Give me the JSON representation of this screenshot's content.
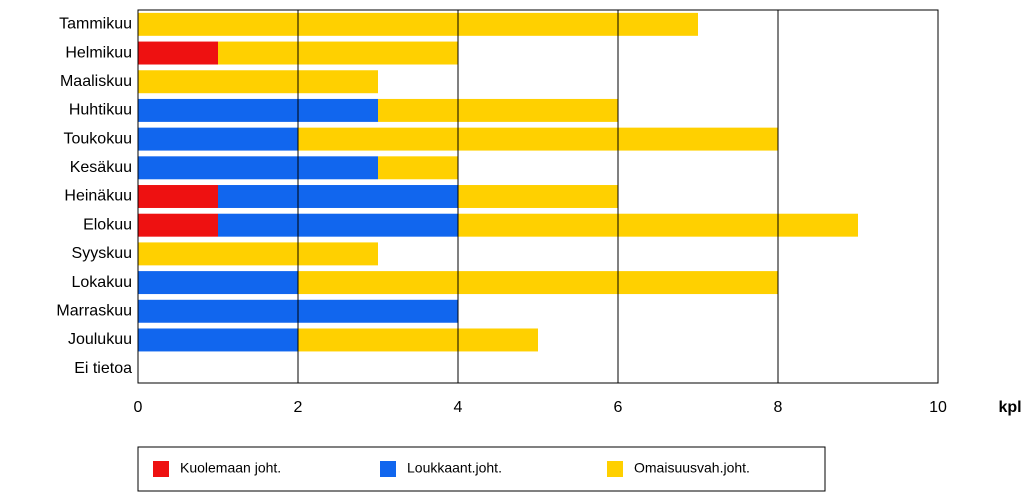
{
  "chart_data": {
    "type": "bar",
    "orientation": "horizontal",
    "stacked": true,
    "x_label": "kpl",
    "categories": [
      "Tammikuu",
      "Helmikuu",
      "Maaliskuu",
      "Huhtikuu",
      "Toukokuu",
      "Kesäkuu",
      "Heinäkuu",
      "Elokuu",
      "Syyskuu",
      "Lokakuu",
      "Marraskuu",
      "Joulukuu",
      "Ei tietoa"
    ],
    "series": [
      {
        "name": "Kuolemaan joht.",
        "color": "#ee1111",
        "values": [
          0,
          1,
          0,
          0,
          0,
          0,
          1,
          1,
          0,
          0,
          0,
          0,
          0
        ]
      },
      {
        "name": "Loukkaant.joht.",
        "color": "#1166ee",
        "values": [
          0,
          0,
          0,
          3,
          2,
          3,
          3,
          3,
          0,
          2,
          4,
          2,
          0
        ]
      },
      {
        "name": "Omaisuusvah.joht.",
        "color": "#ffd000",
        "values": [
          7,
          3,
          3,
          3,
          6,
          1,
          2,
          5,
          3,
          6,
          0,
          3,
          0
        ]
      }
    ],
    "xlim": [
      0,
      10
    ],
    "xticks": [
      0,
      2,
      4,
      6,
      8,
      10
    ],
    "grid": true,
    "legend": "bottom"
  }
}
